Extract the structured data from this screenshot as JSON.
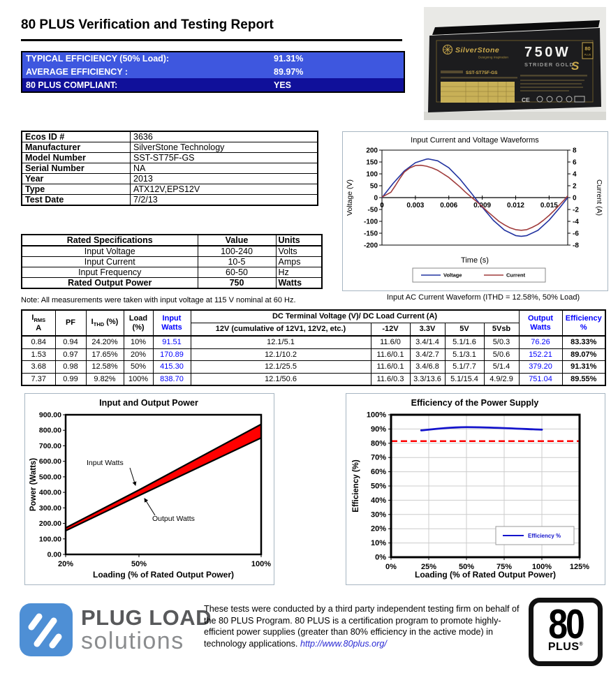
{
  "page": {
    "title": "80 PLUS Verification and Testing Report"
  },
  "summary": {
    "rows": [
      {
        "label": "TYPICAL EFFICIENCY (50% Load):",
        "value": "91.31%",
        "dark": false
      },
      {
        "label": "AVERAGE EFFICIENCY :",
        "value": "89.97%",
        "dark": false
      },
      {
        "label": "80 PLUS COMPLIANT:",
        "value": "YES",
        "dark": true
      }
    ],
    "row_blue": "#3E57DF",
    "row_navy": "#10109A"
  },
  "photo": {
    "brand": "SilverStone",
    "tagline": "Designing Inspiration",
    "wattage": "750W",
    "series": "STRIDER GOLD",
    "series_s": "S",
    "model": "SST-ST75F-GS",
    "badge": "80",
    "badge_word": "PLUS",
    "cert": "CE"
  },
  "info_table": {
    "rows": [
      [
        "Ecos ID #",
        "3636"
      ],
      [
        "Manufacturer",
        "SilverStone Technology"
      ],
      [
        "Model Number",
        "SST-ST75F-GS"
      ],
      [
        "Serial Number",
        "NA"
      ],
      [
        "Year",
        "2013"
      ],
      [
        "Type",
        "ATX12V,EPS12V"
      ],
      [
        "Test Date",
        "7/2/13"
      ]
    ]
  },
  "spec_table": {
    "headers": [
      "Rated Specifications",
      "Value",
      "Units"
    ],
    "rows": [
      [
        "Input Voltage",
        "100-240",
        "Volts"
      ],
      [
        "Input Current",
        "10-5",
        "Amps"
      ],
      [
        "Input Frequency",
        "60-50",
        "Hz"
      ],
      [
        "Rated Output Power",
        "750",
        "Watts"
      ]
    ],
    "note": "Note: All measurements were taken with input voltage at 115 V nominal at 60 Hz."
  },
  "main_table": {
    "headers": {
      "irms_i": "I",
      "irms_sub": "RMS",
      "irms_unit": "A",
      "pf": "PF",
      "ithd_i": "I",
      "ithd_sub": "THD",
      "ithd_suffix": " (%)",
      "load_1": "Load",
      "load_2": "(%)",
      "input_1": "Input",
      "input_2": "Watts",
      "dc_span": "DC Terminal Voltage (V)/ DC Load Current (A)",
      "v12": "12V (cumulative of 12V1, 12V2, etc.)",
      "vneg12": "-12V",
      "v33": "3.3V",
      "v5": "5V",
      "v5sb": "5Vsb",
      "output_1": "Output",
      "output_2": "Watts",
      "eff_1": "Efficiency",
      "eff_2": "%"
    },
    "rows": [
      [
        "0.84",
        "0.94",
        "24.20%",
        "10%",
        "91.51",
        "12.1/5.1",
        "11.6/0",
        "3.4/1.4",
        "5.1/1.6",
        "5/0.3",
        "76.26",
        "83.33%"
      ],
      [
        "1.53",
        "0.97",
        "17.65%",
        "20%",
        "170.89",
        "12.1/10.2",
        "11.6/0.1",
        "3.4/2.7",
        "5.1/3.1",
        "5/0.6",
        "152.21",
        "89.07%"
      ],
      [
        "3.68",
        "0.98",
        "12.58%",
        "50%",
        "415.30",
        "12.1/25.5",
        "11.6/0.1",
        "3.4/6.8",
        "5.1/7.7",
        "5/1.4",
        "379.20",
        "91.31%"
      ],
      [
        "7.37",
        "0.99",
        "9.82%",
        "100%",
        "838.70",
        "12.1/50.6",
        "11.6/0.3",
        "3.3/13.6",
        "5.1/15.4",
        "4.9/2.9",
        "751.04",
        "89.55%"
      ]
    ]
  },
  "chart_data": [
    {
      "id": "waveform",
      "type": "line",
      "title": "Input Current and Voltage Waveforms",
      "xlabel": "Time (s)",
      "ylabel_left": "Voltage (V)",
      "ylabel_right": "Current (A)",
      "x_range": [
        0,
        0.01667
      ],
      "x_ticks": [
        0,
        0.003,
        0.006,
        0.009,
        0.012,
        0.015
      ],
      "v_range": [
        -200,
        200
      ],
      "v_step": 50,
      "c_range": [
        -8,
        8
      ],
      "c_step": 2,
      "series": [
        {
          "name": "Voltage",
          "axis": "left",
          "color": "#2233A0",
          "t_ms": [
            0,
            1,
            2,
            3,
            4,
            4.17,
            5,
            6,
            7,
            8,
            8.33,
            9,
            10,
            11,
            12,
            12.5,
            13,
            14,
            15,
            16,
            16.67
          ],
          "values": [
            0,
            60,
            112,
            147,
            162,
            163,
            155,
            126,
            78,
            20,
            0,
            -40,
            -96,
            -137,
            -160,
            -163,
            -160,
            -138,
            -95,
            -40,
            0
          ]
        },
        {
          "name": "Current",
          "axis": "right",
          "color": "#A03C3C",
          "t_ms": [
            0,
            0.4,
            0.8,
            1.2,
            1.6,
            2,
            2.5,
            3,
            3.5,
            4,
            4.5,
            5,
            5.5,
            6,
            6.5,
            7,
            7.5,
            8,
            8.4,
            9,
            9.5,
            10,
            10.5,
            11,
            11.5,
            12,
            12.5,
            13,
            13.5,
            14,
            14.5,
            15,
            15.5,
            16,
            16.4,
            16.67
          ],
          "values": [
            0.1,
            0.5,
            0.9,
            2.0,
            3.2,
            4.3,
            5.0,
            5.4,
            5.45,
            5.3,
            5.0,
            4.6,
            4.0,
            3.4,
            2.6,
            1.8,
            0.9,
            0.1,
            -0.5,
            -1.5,
            -2.4,
            -3.2,
            -4.0,
            -4.6,
            -5.1,
            -5.4,
            -5.5,
            -5.4,
            -5.0,
            -4.5,
            -3.8,
            -3.0,
            -2.1,
            -1.1,
            -0.3,
            0.3
          ]
        }
      ],
      "legend_position": "bottom",
      "grid": false,
      "caption": "Input AC Current Waveform (ITHD = 12.58%, 50% Load)"
    },
    {
      "id": "power",
      "type": "area",
      "title": "Input and Output Power",
      "xlabel": "Loading (% of Rated Output Power)",
      "ylabel": "Power (Watts)",
      "x": [
        20,
        50,
        100
      ],
      "x_tick_labels": [
        "20%",
        "50%",
        "100%"
      ],
      "ylim": [
        0,
        900
      ],
      "y_step": 100,
      "series": [
        {
          "name": "Input Watts",
          "values": [
            170.89,
            415.3,
            838.7
          ]
        },
        {
          "name": "Output Watts",
          "values": [
            152.21,
            379.2,
            751.04
          ]
        }
      ],
      "fill_color": "#FF0000",
      "line_color": "#000000",
      "annotations": [
        "Input Watts",
        "Output Watts"
      ],
      "grid": false
    },
    {
      "id": "efficiency",
      "type": "line",
      "title": "Efficiency of the Power Supply",
      "xlabel": "Loading (% of Rated Output Power)",
      "ylabel": "Efficiency (%)",
      "x": [
        20,
        50,
        100
      ],
      "values": [
        89.07,
        91.31,
        89.55
      ],
      "xlim": [
        0,
        125
      ],
      "x_step": 25,
      "ylim": [
        0,
        100
      ],
      "y_step": 10,
      "threshold_line": 81.5,
      "threshold_color": "#FF0000",
      "line_color": "#1414CC",
      "legend": "Efficiency %",
      "legend_position": "bottom-right",
      "grid": true
    }
  ],
  "footer": {
    "logo_line1": "PLUG LOAD",
    "logo_line2": "solutions",
    "logo_blue": "#4E8FD5",
    "text": "These tests were conducted by a third party independent testing firm on behalf of the 80 PLUS Program. 80 PLUS is a certification program to promote highly-efficient power supplies (greater than 80% efficiency in the active mode) in technology applications. ",
    "url": "http://www.80plus.org/",
    "badge_number": "80",
    "badge_word": "PLUS",
    "badge_reg": "®"
  }
}
